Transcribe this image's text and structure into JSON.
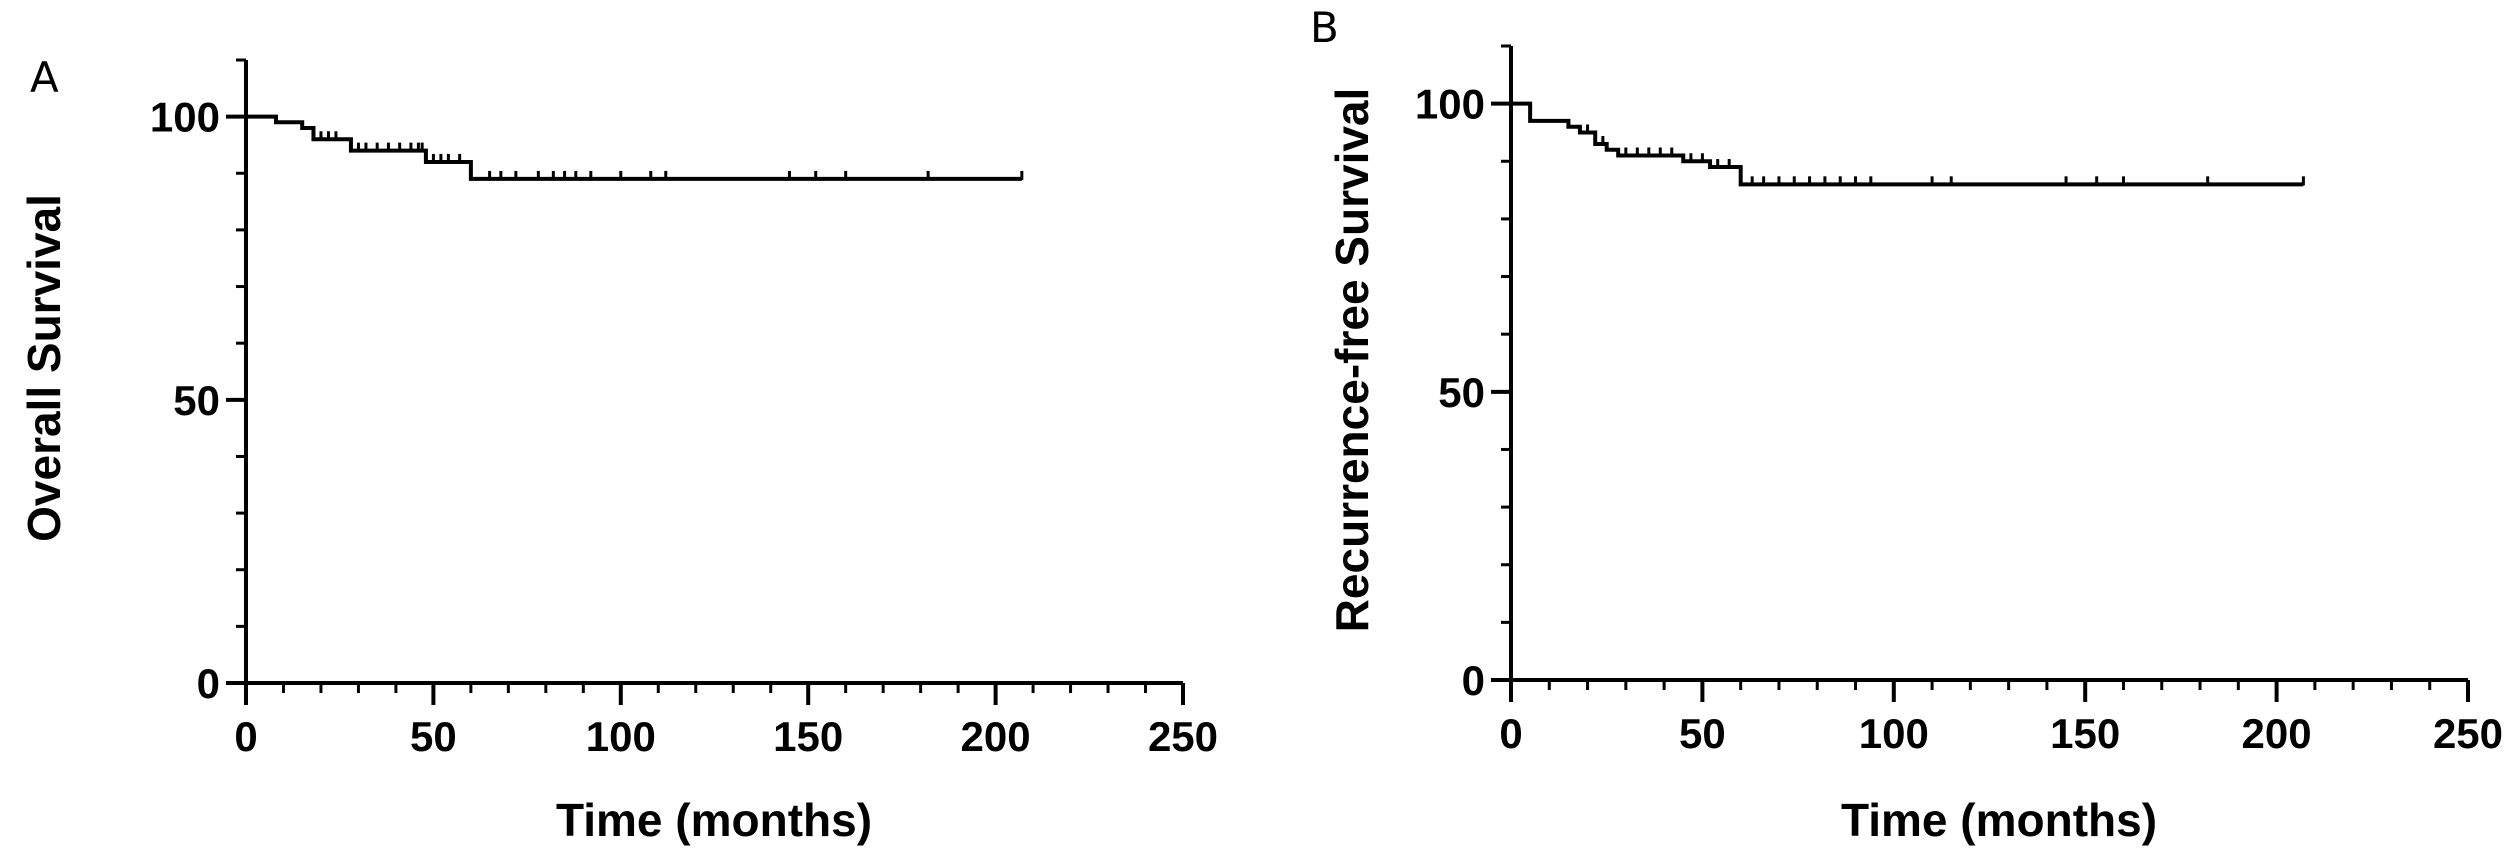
{
  "chart_data": [
    {
      "type": "line",
      "panel_label": "A",
      "title": "",
      "xlabel": "Time (months)",
      "ylabel": "Overall Survival",
      "xlim": [
        0,
        250
      ],
      "ylim": [
        0,
        110
      ],
      "xticks": [
        0,
        50,
        100,
        150,
        200,
        250
      ],
      "yticks": [
        0,
        50,
        100
      ],
      "y_minor_step": 10,
      "x_minor_step": 10,
      "grid": false,
      "line_color": "#000000",
      "series": [
        {
          "step_x": [
            0,
            8,
            15,
            18,
            25,
            28,
            48,
            60,
            207
          ],
          "step_y": [
            100,
            99,
            98,
            96,
            96,
            94,
            92,
            89,
            89
          ],
          "censor_x": [
            20,
            22,
            24,
            30,
            32,
            35,
            38,
            41,
            44,
            46,
            47,
            50,
            52,
            54,
            57,
            65,
            68,
            72,
            78,
            82,
            85,
            88,
            92,
            100,
            108,
            112,
            145,
            152,
            160,
            182,
            207
          ]
        }
      ]
    },
    {
      "type": "line",
      "panel_label": "B",
      "title": "",
      "xlabel": "Time (months)",
      "ylabel": "Recurrence-free Survival",
      "xlim": [
        0,
        250
      ],
      "ylim": [
        0,
        110
      ],
      "xticks": [
        0,
        50,
        100,
        150,
        200,
        250
      ],
      "yticks": [
        0,
        50,
        100
      ],
      "y_minor_step": 10,
      "x_minor_step": 10,
      "grid": false,
      "line_color": "#000000",
      "series": [
        {
          "step_x": [
            0,
            5,
            15,
            18,
            22,
            25,
            28,
            45,
            52,
            60,
            207
          ],
          "step_y": [
            100,
            97,
            96,
            95,
            93,
            92,
            91,
            90,
            89,
            86,
            86
          ],
          "censor_x": [
            20,
            24,
            30,
            33,
            36,
            39,
            42,
            47,
            50,
            54,
            57,
            63,
            66,
            70,
            74,
            78,
            82,
            86,
            90,
            94,
            110,
            115,
            145,
            153,
            160,
            182,
            207
          ]
        }
      ]
    }
  ]
}
